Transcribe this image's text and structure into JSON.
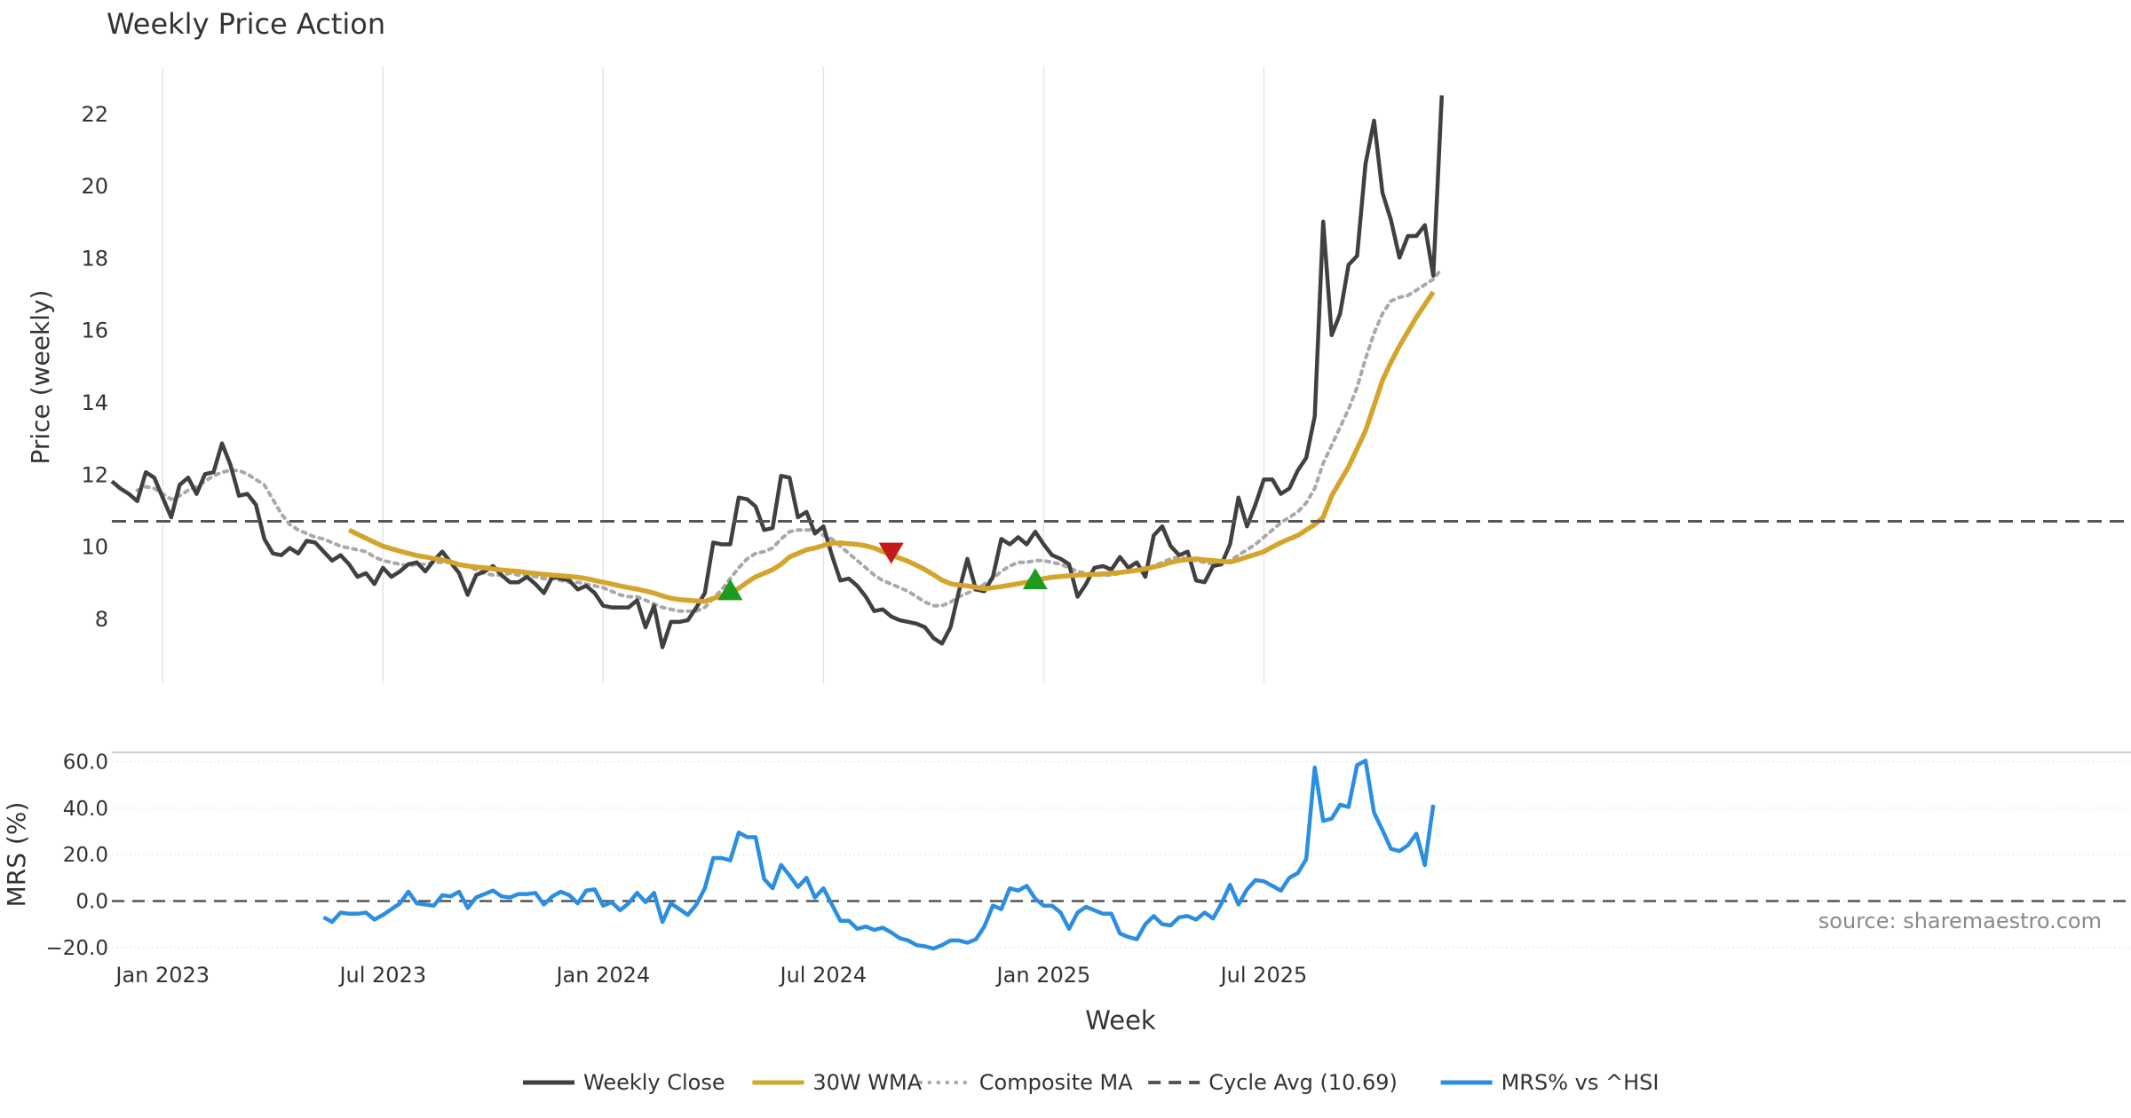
{
  "colors": {
    "close": "#404040",
    "wma": "#d4a52c",
    "composite": "#a9a9a9",
    "cycle": "#555555",
    "mrs": "#2b8ee0",
    "buy": "#1e9a1e",
    "sell": "#c41a1a",
    "grid": "#e6e6e6"
  },
  "chart_data": [
    {
      "type": "line",
      "title": "Weekly Price Action",
      "xlabel": "",
      "ylabel": "Price (weekly)",
      "ylim": [
        6.2,
        23.3
      ],
      "yticks": [
        8,
        10,
        12,
        14,
        16,
        18,
        20,
        22
      ],
      "x_start": "2022-11-21",
      "x_step": "1 week",
      "series": [
        {
          "name": "Weekly Close",
          "start_index": 0,
          "values": [
            11.8,
            11.6,
            11.45,
            11.25,
            12.05,
            11.9,
            11.35,
            10.8,
            11.7,
            11.9,
            11.45,
            12.0,
            12.05,
            12.85,
            12.25,
            11.4,
            11.45,
            11.15,
            10.2,
            9.8,
            9.75,
            9.95,
            9.8,
            10.15,
            10.1,
            9.85,
            9.6,
            9.75,
            9.5,
            9.15,
            9.25,
            8.95,
            9.4,
            9.15,
            9.3,
            9.5,
            9.55,
            9.3,
            9.6,
            9.85,
            9.55,
            9.25,
            8.65,
            9.2,
            9.3,
            9.45,
            9.2,
            9.0,
            9.0,
            9.15,
            8.95,
            8.7,
            9.15,
            9.1,
            9.05,
            8.8,
            8.9,
            8.7,
            8.35,
            8.3,
            8.3,
            8.3,
            8.5,
            7.75,
            8.35,
            7.2,
            7.9,
            7.9,
            7.95,
            8.3,
            8.7,
            10.1,
            10.05,
            10.05,
            11.35,
            11.3,
            11.1,
            10.45,
            10.5,
            11.95,
            11.9,
            10.8,
            10.95,
            10.35,
            10.55,
            9.75,
            9.05,
            9.1,
            8.9,
            8.6,
            8.2,
            8.25,
            8.05,
            7.95,
            7.9,
            7.85,
            7.75,
            7.45,
            7.3,
            7.75,
            8.75,
            9.65,
            8.8,
            8.75,
            9.15,
            10.2,
            10.05,
            10.25,
            10.05,
            10.4,
            10.05,
            9.75,
            9.65,
            9.5,
            8.6,
            8.95,
            9.4,
            9.45,
            9.35,
            9.7,
            9.4,
            9.55,
            9.15,
            10.3,
            10.55,
            10.0,
            9.75,
            9.85,
            9.05,
            9.0,
            9.45,
            9.5,
            10.05,
            11.35,
            10.55,
            11.15,
            11.85,
            11.85,
            11.45,
            11.6,
            12.1,
            12.45,
            13.6,
            19.0,
            15.85,
            16.45,
            17.8,
            18.05,
            20.6,
            21.8,
            19.8,
            19.05,
            18.0,
            18.6,
            18.6,
            18.9,
            17.5,
            22.5
          ]
        },
        {
          "name": "30W WMA",
          "start_index": 28,
          "values": [
            10.45,
            10.33,
            10.22,
            10.11,
            10.0,
            9.93,
            9.86,
            9.8,
            9.74,
            9.7,
            9.66,
            9.62,
            9.56,
            9.49,
            9.45,
            9.42,
            9.4,
            9.37,
            9.34,
            9.32,
            9.3,
            9.27,
            9.24,
            9.22,
            9.2,
            9.18,
            9.16,
            9.14,
            9.1,
            9.05,
            9.0,
            8.95,
            8.9,
            8.85,
            8.81,
            8.76,
            8.7,
            8.62,
            8.56,
            8.52,
            8.5,
            8.48,
            8.47,
            8.55,
            8.63,
            8.72,
            8.83,
            9.0,
            9.15,
            9.25,
            9.35,
            9.5,
            9.7,
            9.8,
            9.9,
            9.95,
            10.02,
            10.08,
            10.09,
            10.07,
            10.05,
            10.01,
            9.95,
            9.85,
            9.76,
            9.67,
            9.58,
            9.47,
            9.35,
            9.21,
            9.06,
            8.96,
            8.92,
            8.9,
            8.86,
            8.82,
            8.85,
            8.88,
            8.92,
            8.96,
            9.0,
            9.05,
            9.1,
            9.14,
            9.16,
            9.18,
            9.2,
            9.21,
            9.22,
            9.23,
            9.25,
            9.27,
            9.3,
            9.33,
            9.37,
            9.42,
            9.48,
            9.55,
            9.6,
            9.63,
            9.65,
            9.62,
            9.6,
            9.58,
            9.56,
            9.62,
            9.7,
            9.77,
            9.85,
            9.98,
            10.1,
            10.2,
            10.3,
            10.45,
            10.6,
            10.8,
            11.4,
            11.8,
            12.2,
            12.7,
            13.2,
            13.9,
            14.6,
            15.1,
            15.55,
            15.95,
            16.35,
            16.7,
            17.05
          ]
        },
        {
          "name": "Composite MA",
          "start_index": 3,
          "values": [
            11.55,
            11.65,
            11.6,
            11.45,
            11.3,
            11.4,
            11.55,
            11.65,
            11.8,
            11.95,
            12.05,
            12.1,
            12.1,
            12.0,
            11.85,
            11.7,
            11.3,
            10.9,
            10.6,
            10.45,
            10.35,
            10.25,
            10.2,
            10.1,
            10.0,
            9.95,
            9.9,
            9.85,
            9.7,
            9.6,
            9.55,
            9.5,
            9.45,
            9.5,
            9.5,
            9.55,
            9.55,
            9.55,
            9.5,
            9.45,
            9.35,
            9.25,
            9.2,
            9.2,
            9.25,
            9.2,
            9.2,
            9.15,
            9.1,
            9.1,
            9.05,
            9.0,
            9.0,
            8.95,
            8.9,
            8.85,
            8.75,
            8.65,
            8.6,
            8.6,
            8.5,
            8.4,
            8.3,
            8.25,
            8.2,
            8.2,
            8.2,
            8.3,
            8.55,
            8.8,
            9.1,
            9.4,
            9.65,
            9.8,
            9.85,
            9.95,
            10.2,
            10.4,
            10.45,
            10.45,
            10.45,
            10.3,
            10.2,
            10.0,
            9.8,
            9.6,
            9.4,
            9.2,
            9.05,
            8.95,
            8.85,
            8.75,
            8.6,
            8.45,
            8.35,
            8.35,
            8.45,
            8.6,
            8.7,
            8.8,
            8.95,
            9.1,
            9.3,
            9.45,
            9.55,
            9.55,
            9.6,
            9.6,
            9.55,
            9.5,
            9.4,
            9.3,
            9.25,
            9.2,
            9.2,
            9.2,
            9.25,
            9.3,
            9.35,
            9.4,
            9.45,
            9.55,
            9.65,
            9.7,
            9.65,
            9.6,
            9.55,
            9.5,
            9.5,
            9.6,
            9.75,
            9.9,
            10.05,
            10.25,
            10.45,
            10.65,
            10.8,
            10.95,
            11.2,
            11.6,
            12.3,
            12.8,
            13.3,
            13.8,
            14.4,
            15.2,
            15.9,
            16.45,
            16.8,
            16.9,
            16.95,
            17.1,
            17.25,
            17.4,
            17.7
          ]
        }
      ],
      "reference_lines": [
        {
          "name": "Cycle Avg (10.69)",
          "value": 10.69
        }
      ],
      "markers": [
        {
          "type": "buy",
          "index": 73,
          "value": 8.8
        },
        {
          "type": "sell",
          "index": 92,
          "value": 9.8
        },
        {
          "type": "buy",
          "index": 109,
          "value": 9.1
        }
      ]
    },
    {
      "type": "line",
      "title": "",
      "xlabel": "Week",
      "ylabel": "MRS (%)",
      "ylim": [
        -22,
        64
      ],
      "yticks": [
        -20.0,
        0.0,
        20.0,
        40.0,
        60.0
      ],
      "ytick_labels": [
        "−20.0",
        "0.0",
        "20.0",
        "40.0",
        "60.0"
      ],
      "xticks": [
        "Jan 2023",
        "Jul 2023",
        "Jan 2024",
        "Jul 2024",
        "Jan 2025",
        "Jul 2025"
      ],
      "xtick_index": [
        6,
        32,
        58,
        84,
        110,
        136
      ],
      "series": [
        {
          "name": "MRS% vs ^HSI",
          "start_index": 25,
          "values": [
            -7,
            -9,
            -5,
            -5.5,
            -5.5,
            -5,
            -8,
            -6,
            -3.5,
            -1,
            4,
            -1,
            -1.5,
            -2,
            2.5,
            2,
            4,
            -3,
            1.5,
            3,
            4.5,
            2,
            1.5,
            3,
            3,
            3.5,
            -1.5,
            2,
            4,
            2.5,
            -1,
            4.5,
            5,
            -2,
            -0.5,
            -4,
            -1,
            3.5,
            -0.5,
            3.5,
            -9,
            -1,
            -3.5,
            -6,
            -1.5,
            5.5,
            18.5,
            18.5,
            17.5,
            29.5,
            27.5,
            27.5,
            9.5,
            5.5,
            15.5,
            11,
            6,
            10,
            1.5,
            5.5,
            -1.5,
            -8.5,
            -8.5,
            -12,
            -11,
            -12.5,
            -11.5,
            -13.5,
            -16,
            -17,
            -19,
            -19.5,
            -20.5,
            -19,
            -17,
            -17,
            -18,
            -16.5,
            -11,
            -2,
            -3.5,
            5.5,
            4.5,
            6.5,
            1,
            -2,
            -2,
            -5,
            -12,
            -5,
            -2.5,
            -4,
            -5.5,
            -5.5,
            -14,
            -15.5,
            -16.5,
            -10,
            -6.5,
            -10,
            -10.5,
            -7,
            -6.5,
            -8,
            -5,
            -7.5,
            -1,
            7,
            -1.5,
            5,
            9,
            8.5,
            6.5,
            4.5,
            10,
            12,
            18,
            57.5,
            34.5,
            35.5,
            41.5,
            40.5,
            58.5,
            60.5,
            38,
            30.5,
            22.5,
            21.5,
            24,
            29,
            15.5,
            41.5
          ]
        }
      ],
      "reference_lines": [
        {
          "name": "zero",
          "value": 0
        }
      ],
      "source_note": "source: sharemaestro.com"
    }
  ],
  "legend": [
    {
      "label": "Weekly Close",
      "style": "solid",
      "color": "#404040"
    },
    {
      "label": "30W WMA",
      "style": "solid",
      "color": "#d4a52c"
    },
    {
      "label": "Composite MA",
      "style": "dotted",
      "color": "#a9a9a9"
    },
    {
      "label": "Cycle Avg (10.69)",
      "style": "dashed",
      "color": "#555555"
    },
    {
      "label": "MRS% vs ^HSI",
      "style": "solid",
      "color": "#2b8ee0"
    }
  ]
}
